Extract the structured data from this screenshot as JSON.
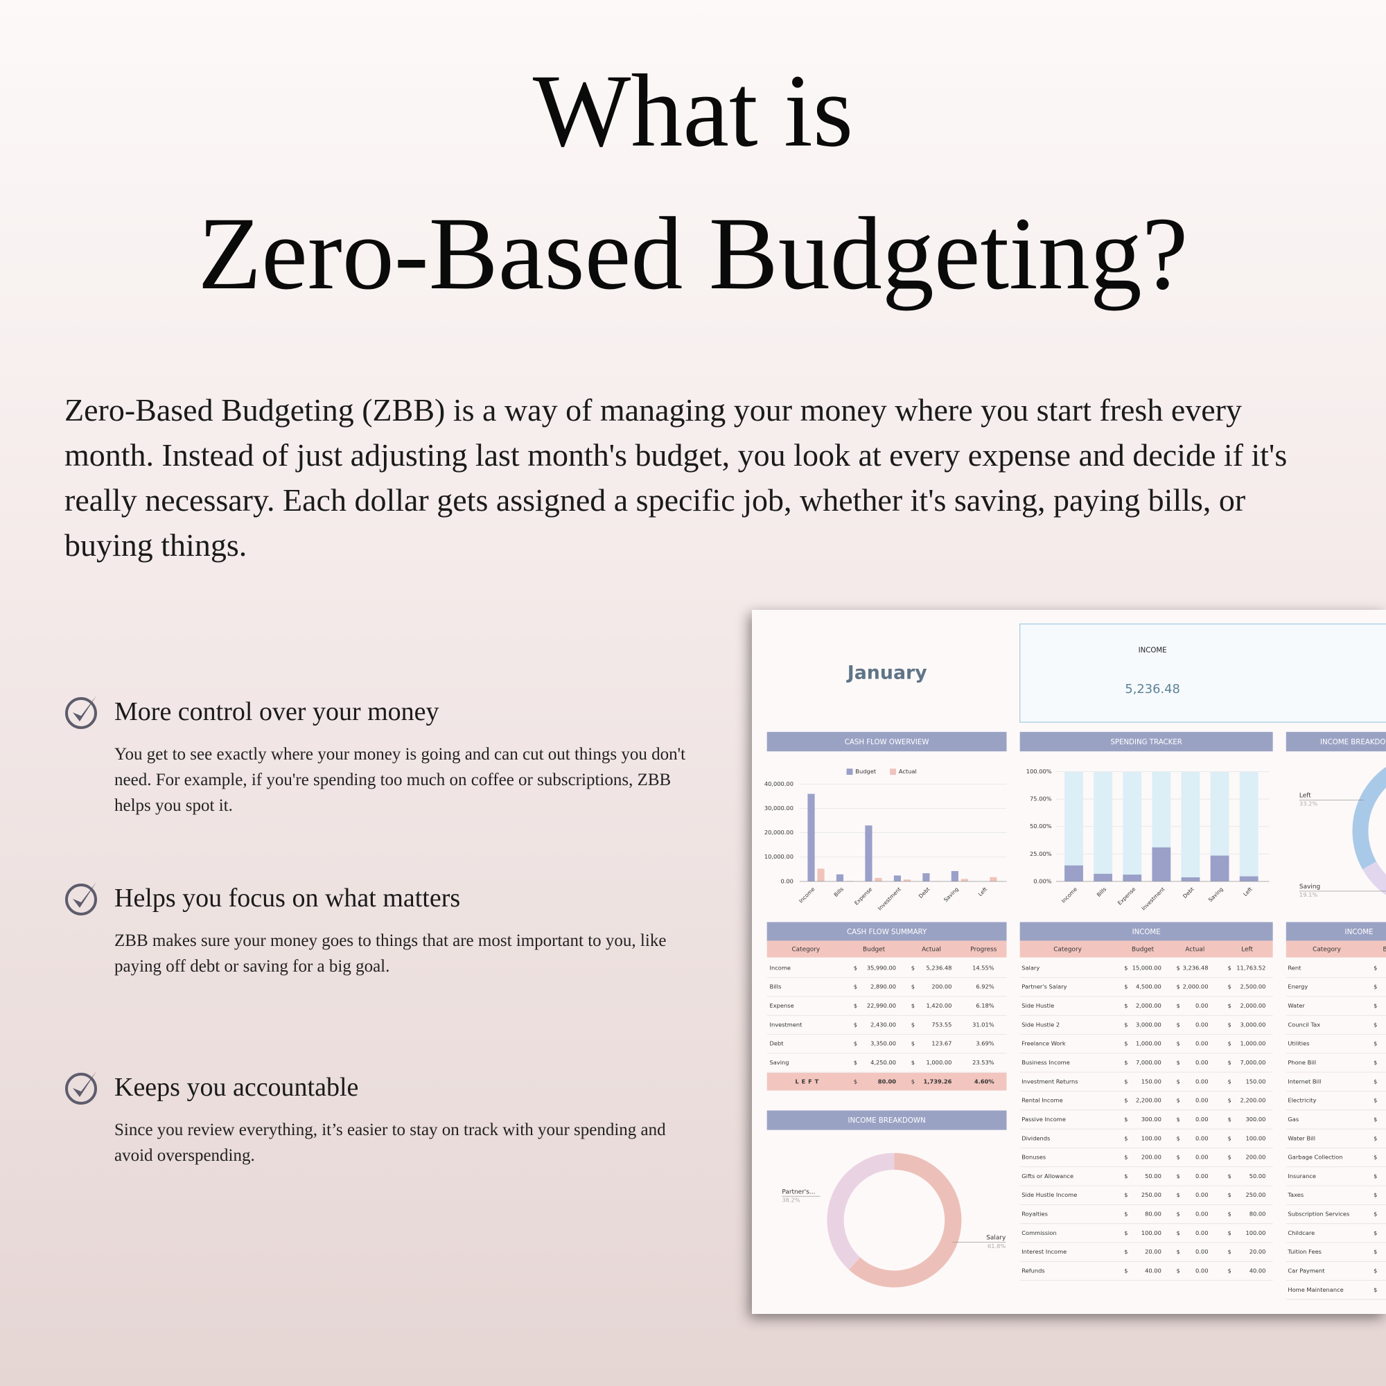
{
  "heading": {
    "line1": "What is",
    "line2": "Zero-Based Budgeting?"
  },
  "intro": "Zero-Based Budgeting (ZBB) is a way of managing your money where you start fresh every month. Instead of just adjusting last month's budget, you look at every expense and decide if it's really necessary. Each dollar gets assigned a specific job, whether it's saving, paying bills, or buying things.",
  "features": [
    {
      "title": "More control over your money",
      "text": "You get to see exactly where your money is going and can cut out things you don't need. For example, if you're spending too much on coffee or subscriptions, ZBB helps you spot it."
    },
    {
      "title": "Helps you focus on what matters",
      "text": "ZBB makes sure your money goes to things that are most important to you, like paying off debt or saving for a big goal."
    },
    {
      "title": "Keeps you accountable",
      "text": "Since you review everything, it’s easier to stay on track with your spending and avoid overspending."
    }
  ],
  "dashboard": {
    "month": "January",
    "currency": "$",
    "income_card": {
      "label": "INCOME",
      "value": "5,236.48"
    },
    "cash_flow_overview": {
      "type": "bar",
      "title": "CASH FLOW OWERVIEW",
      "grid": true,
      "categories": [
        "Income",
        "Bills",
        "Expense",
        "Investment",
        "Debt",
        "Saving",
        "Left"
      ],
      "series": [
        {
          "name": "Budget",
          "color": "#9aa0c8",
          "values": [
            35990,
            2890,
            22990,
            2430,
            3350,
            4250,
            80
          ]
        },
        {
          "name": "Actual",
          "color": "#f0c3bb",
          "values": [
            5236.48,
            200,
            1420,
            753.55,
            123.67,
            1000,
            1739.26
          ]
        }
      ],
      "ylim": [
        0,
        40000
      ],
      "yticks": [
        {
          "value": 0,
          "label": "0.00"
        },
        {
          "value": 10000,
          "label": "10,000.00"
        },
        {
          "value": 20000,
          "label": "20,000.00"
        },
        {
          "value": 30000,
          "label": "30,000.00"
        },
        {
          "value": 40000,
          "label": "40,000.00"
        }
      ]
    },
    "spending_tracker": {
      "type": "bar",
      "title": "SPENDING TRACKER",
      "grid": true,
      "color": "#9aa0c8",
      "track_color": "#dceef6",
      "categories": [
        "Income",
        "Bills",
        "Expense",
        "Investment",
        "Debt",
        "Saving",
        "Left"
      ],
      "values": [
        14.55,
        6.92,
        6.18,
        31.01,
        3.69,
        23.53,
        4.6
      ],
      "ylim": [
        0,
        100
      ],
      "yticks": [
        {
          "value": 0,
          "label": "0.00%"
        },
        {
          "value": 25,
          "label": "25.00%"
        },
        {
          "value": 50,
          "label": "50.00%"
        },
        {
          "value": 75,
          "label": "75.00%"
        },
        {
          "value": 100,
          "label": "100.00%"
        }
      ]
    },
    "side_breakdown": {
      "type": "pie",
      "title": "INCOME BREAKDOWN",
      "categories": [
        "Left",
        "Saving"
      ],
      "values": [
        33.2,
        19.1
      ],
      "value_labels": [
        "33.2%",
        "19.1%"
      ],
      "colors": [
        "#a9c9e8",
        "#e2d6ef"
      ]
    },
    "cash_flow_summary": {
      "title": "CASH FLOW SUMMARY",
      "columns": [
        "Category",
        "Budget",
        "Actual",
        "Progress"
      ],
      "rows": [
        [
          "Income",
          "35,990.00",
          "5,236.48",
          "14.55%"
        ],
        [
          "Bills",
          "2,890.00",
          "200.00",
          "6.92%"
        ],
        [
          "Expense",
          "22,990.00",
          "1,420.00",
          "6.18%"
        ],
        [
          "Investment",
          "2,430.00",
          "753.55",
          "31.01%"
        ],
        [
          "Debt",
          "3,350.00",
          "123.67",
          "3.69%"
        ],
        [
          "Saving",
          "4,250.00",
          "1,000.00",
          "23.53%"
        ]
      ],
      "total": [
        "LEFT",
        "80.00",
        "1,739.26",
        "4.60%"
      ]
    },
    "income": {
      "title": "INCOME",
      "columns": [
        "Category",
        "Budget",
        "Actual",
        "Left"
      ],
      "rows": [
        [
          "Salary",
          "15,000.00",
          "3,236.48",
          "11,763.52"
        ],
        [
          "Partner's Salary",
          "4,500.00",
          "2,000.00",
          "2,500.00"
        ],
        [
          "Side Hustle",
          "2,000.00",
          "0.00",
          "2,000.00"
        ],
        [
          "Side Hustle 2",
          "3,000.00",
          "0.00",
          "3,000.00"
        ],
        [
          "Freelance Work",
          "1,000.00",
          "0.00",
          "1,000.00"
        ],
        [
          "Business Income",
          "7,000.00",
          "0.00",
          "7,000.00"
        ],
        [
          "Investment Returns",
          "150.00",
          "0.00",
          "150.00"
        ],
        [
          "Rental Income",
          "2,200.00",
          "0.00",
          "2,200.00"
        ],
        [
          "Passive Income",
          "300.00",
          "0.00",
          "300.00"
        ],
        [
          "Dividends",
          "100.00",
          "0.00",
          "100.00"
        ],
        [
          "Bonuses",
          "200.00",
          "0.00",
          "200.00"
        ],
        [
          "Gifts or Allowance",
          "50.00",
          "0.00",
          "50.00"
        ],
        [
          "Side Hustle Income",
          "250.00",
          "0.00",
          "250.00"
        ],
        [
          "Royalties",
          "80.00",
          "0.00",
          "80.00"
        ],
        [
          "Commission",
          "100.00",
          "0.00",
          "100.00"
        ],
        [
          "Interest Income",
          "20.00",
          "0.00",
          "20.00"
        ],
        [
          "Refunds",
          "40.00",
          "0.00",
          "40.00"
        ]
      ]
    },
    "bills": {
      "title": "INCOME",
      "columns": [
        "Category",
        "Budget"
      ],
      "rows": [
        "Rent",
        "Energy",
        "Water",
        "Council Tax",
        "Utilities",
        "Phone Bill",
        "Internet Bill",
        "Electricity",
        "Gas",
        "Water Bill",
        "Garbage Collection",
        "Insurance",
        "Taxes",
        "Subscription Services",
        "Childcare",
        "Tuition Fees",
        "Car Payment",
        "Home Maintenance"
      ]
    },
    "income_breakdown": {
      "type": "pie",
      "title": "INCOME BREAKDOWN",
      "categories": [
        "Partner's...",
        "Salary"
      ],
      "values": [
        38.2,
        61.8
      ],
      "value_labels": [
        "38.2%",
        "61.8%"
      ],
      "colors": [
        "#e9d3e2",
        "#ecc0b8"
      ]
    }
  }
}
